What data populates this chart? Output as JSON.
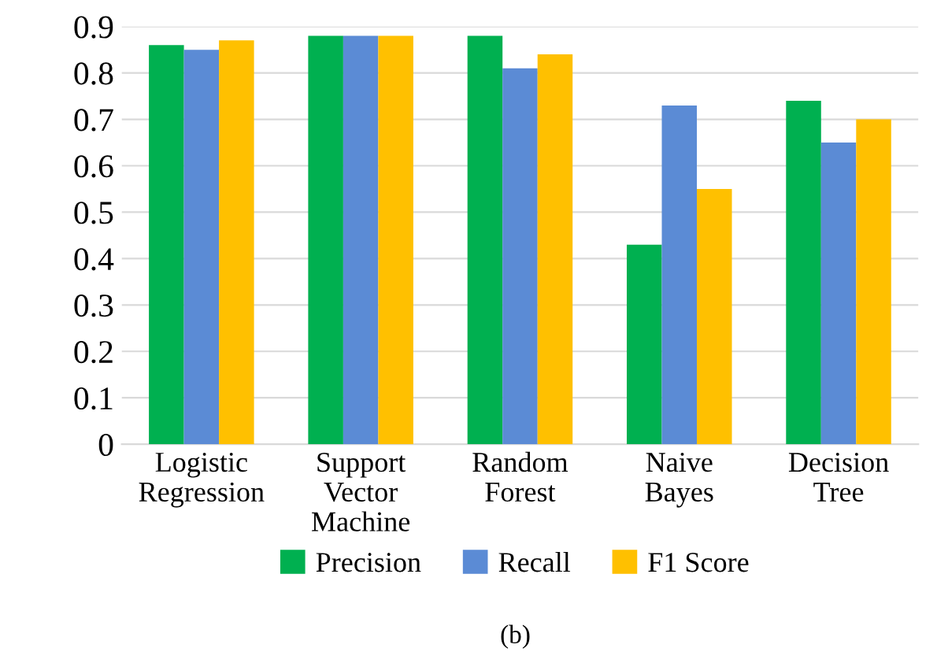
{
  "chart_data": {
    "type": "bar",
    "categories": [
      "Logistic\nRegression",
      "Support\nVector\nMachine",
      "Random\nForest",
      "Naive\nBayes",
      "Decision\nTree"
    ],
    "series": [
      {
        "name": "Precision",
        "color": "#00b050",
        "values": [
          0.86,
          0.88,
          0.88,
          0.43,
          0.74
        ]
      },
      {
        "name": "Recall",
        "color": "#5b8bd5",
        "values": [
          0.85,
          0.88,
          0.81,
          0.73,
          0.65
        ]
      },
      {
        "name": "F1 Score",
        "color": "#ffc000",
        "values": [
          0.87,
          0.88,
          0.84,
          0.55,
          0.7
        ]
      }
    ],
    "ylim": [
      0,
      0.9
    ],
    "yticks": [
      0,
      0.1,
      0.2,
      0.3,
      0.4,
      0.5,
      0.6,
      0.7,
      0.8,
      0.9
    ],
    "grid": "y",
    "legend": "bottom",
    "annotations": [
      "(b)"
    ]
  }
}
